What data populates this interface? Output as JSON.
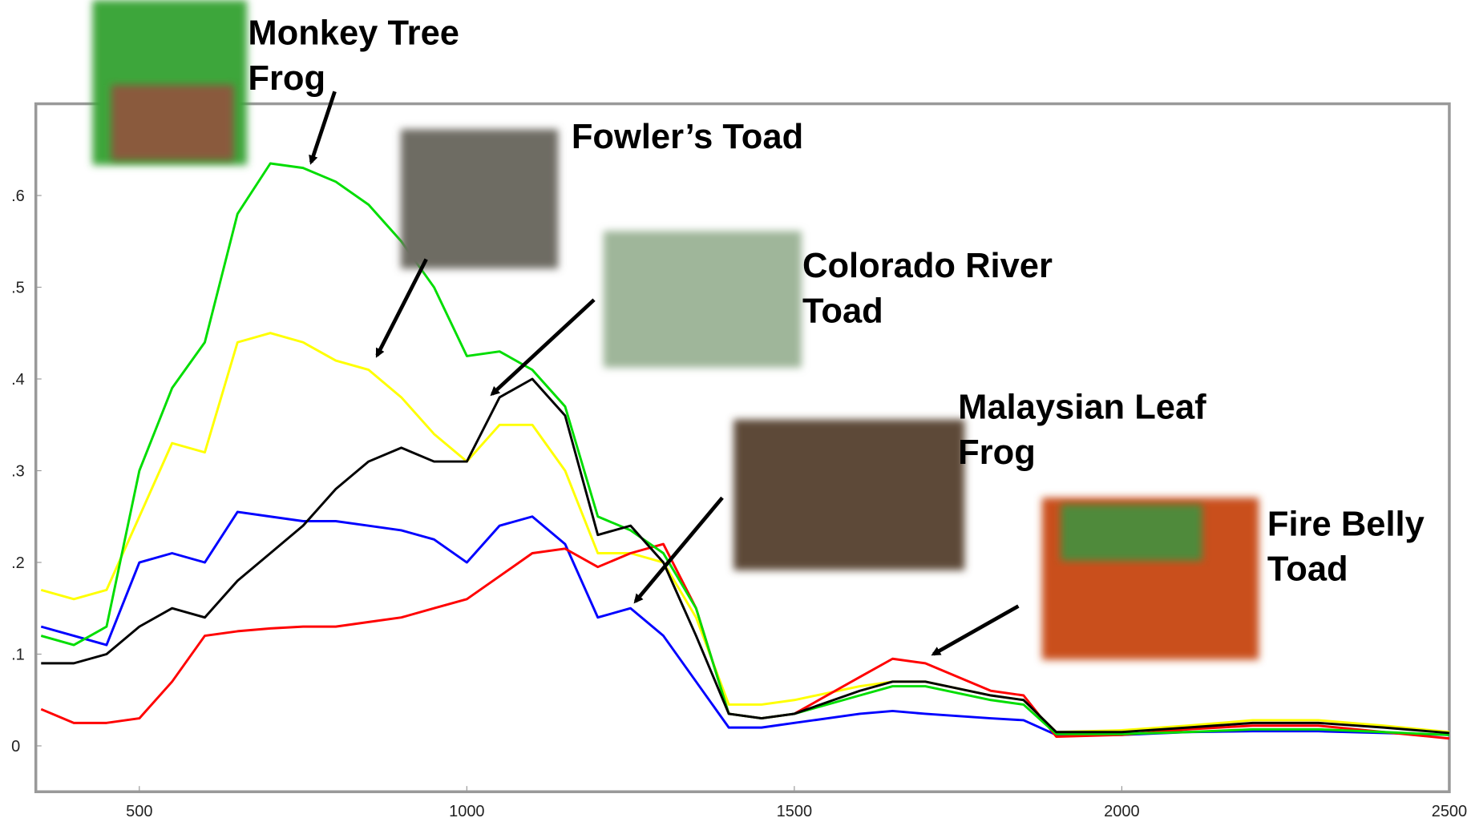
{
  "chart_data": {
    "type": "line",
    "x": [
      350,
      400,
      450,
      500,
      550,
      600,
      650,
      700,
      750,
      800,
      850,
      900,
      950,
      1000,
      1050,
      1100,
      1150,
      1200,
      1250,
      1300,
      1350,
      1400,
      1450,
      1500,
      1600,
      1650,
      1700,
      1800,
      1850,
      1900,
      2000,
      2100,
      2200,
      2300,
      2400,
      2500
    ],
    "series": [
      {
        "color": "#ffff00",
        "values": [
          0.17,
          0.16,
          0.17,
          0.25,
          0.33,
          0.32,
          0.44,
          0.45,
          0.44,
          0.42,
          0.41,
          0.38,
          0.34,
          0.31,
          0.35,
          0.35,
          0.3,
          0.21,
          0.21,
          0.2,
          0.14,
          0.045,
          0.045,
          0.05,
          0.065,
          0.07,
          0.07,
          0.055,
          0.05,
          0.015,
          0.017,
          0.022,
          0.028,
          0.028,
          0.022,
          0.015
        ]
      },
      {
        "color": "#0000ff",
        "values": [
          0.13,
          0.12,
          0.11,
          0.2,
          0.21,
          0.2,
          0.255,
          0.25,
          0.245,
          0.245,
          0.24,
          0.235,
          0.225,
          0.2,
          0.24,
          0.25,
          0.22,
          0.14,
          0.15,
          0.12,
          0.07,
          0.02,
          0.02,
          0.025,
          0.035,
          0.038,
          0.035,
          0.03,
          0.028,
          0.012,
          0.012,
          0.015,
          0.016,
          0.016,
          0.014,
          0.012
        ]
      },
      {
        "color": "#ff0000",
        "values": [
          0.04,
          0.025,
          0.025,
          0.03,
          0.07,
          0.12,
          0.125,
          0.128,
          0.13,
          0.13,
          0.135,
          0.14,
          0.15,
          0.16,
          0.185,
          0.21,
          0.215,
          0.195,
          0.21,
          0.22,
          0.15,
          0.035,
          0.03,
          0.035,
          0.075,
          0.095,
          0.09,
          0.06,
          0.055,
          0.01,
          0.012,
          0.018,
          0.022,
          0.022,
          0.015,
          0.008
        ]
      },
      {
        "color": "#00dd00",
        "values": [
          0.12,
          0.11,
          0.13,
          0.3,
          0.39,
          0.44,
          0.58,
          0.635,
          0.63,
          0.615,
          0.59,
          0.55,
          0.5,
          0.425,
          0.43,
          0.41,
          0.37,
          0.25,
          0.235,
          0.21,
          0.15,
          0.035,
          0.03,
          0.035,
          0.055,
          0.065,
          0.065,
          0.05,
          0.045,
          0.013,
          0.013,
          0.015,
          0.018,
          0.018,
          0.015,
          0.012
        ]
      },
      {
        "color": "#000000",
        "values": [
          0.09,
          0.09,
          0.1,
          0.13,
          0.15,
          0.14,
          0.18,
          0.21,
          0.24,
          0.28,
          0.31,
          0.325,
          0.31,
          0.31,
          0.38,
          0.4,
          0.36,
          0.23,
          0.24,
          0.2,
          0.12,
          0.035,
          0.03,
          0.035,
          0.06,
          0.07,
          0.07,
          0.055,
          0.05,
          0.015,
          0.015,
          0.02,
          0.025,
          0.025,
          0.02,
          0.014
        ]
      }
    ],
    "xlim": [
      342,
      2500
    ],
    "xticks": [
      500,
      1000,
      1500,
      2000,
      2500
    ],
    "ylim": [
      -0.05,
      0.7
    ],
    "yticks": [
      0,
      {
        "value": 0.1,
        "label": ".1"
      },
      {
        "value": 0.2,
        "label": ".2"
      },
      {
        "value": 0.3,
        "label": ".3"
      },
      {
        "value": 0.4,
        "label": ".4"
      },
      {
        "value": 0.5,
        "label": ".5"
      },
      {
        "value": 0.6,
        "label": ".6"
      }
    ],
    "annotations": [
      {
        "text_lines": [
          "Monkey Tree",
          "Frog"
        ]
      },
      {
        "text_lines": [
          "Fowler’s Toad"
        ]
      },
      {
        "text_lines": [
          "Colorado River",
          "Toad"
        ]
      },
      {
        "text_lines": [
          "Malaysian Leaf",
          "Frog"
        ]
      },
      {
        "text_lines": [
          "Fire Belly",
          "Toad"
        ]
      }
    ]
  }
}
